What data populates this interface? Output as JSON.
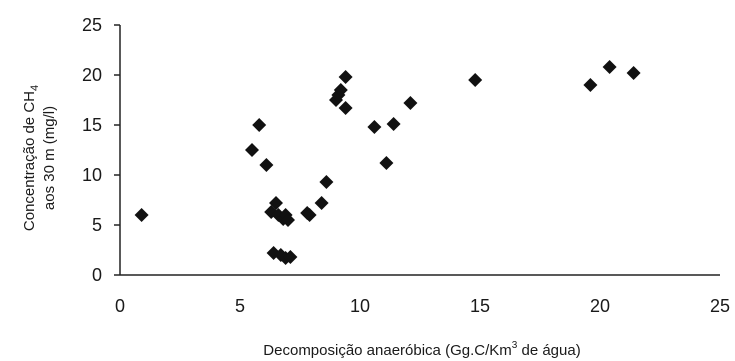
{
  "chart_data": {
    "type": "scatter",
    "xlabel_parts": [
      "Decomposição anaeróbica (Gg.C/Km",
      "3",
      " de água)"
    ],
    "ylabel_line1_parts": [
      "Concentração de CH",
      "4"
    ],
    "ylabel_line2": "aos 30 m (mg/l)",
    "xlim": [
      0,
      25
    ],
    "ylim": [
      0,
      25
    ],
    "xticks": [
      0,
      5,
      10,
      15,
      20,
      25
    ],
    "yticks": [
      0,
      5,
      10,
      15,
      20,
      25
    ],
    "marker": "diamond",
    "marker_color": "#111111",
    "grid": false,
    "points": [
      {
        "x": 0.9,
        "y": 6.0
      },
      {
        "x": 5.5,
        "y": 12.5
      },
      {
        "x": 5.8,
        "y": 15.0
      },
      {
        "x": 6.1,
        "y": 11.0
      },
      {
        "x": 6.3,
        "y": 6.3
      },
      {
        "x": 6.5,
        "y": 7.2
      },
      {
        "x": 6.6,
        "y": 6.0
      },
      {
        "x": 6.8,
        "y": 5.6
      },
      {
        "x": 6.9,
        "y": 6.0
      },
      {
        "x": 7.0,
        "y": 5.5
      },
      {
        "x": 6.4,
        "y": 2.2
      },
      {
        "x": 6.7,
        "y": 2.0
      },
      {
        "x": 6.9,
        "y": 1.7
      },
      {
        "x": 7.1,
        "y": 1.8
      },
      {
        "x": 7.8,
        "y": 6.2
      },
      {
        "x": 7.9,
        "y": 6.0
      },
      {
        "x": 8.4,
        "y": 7.2
      },
      {
        "x": 8.6,
        "y": 9.3
      },
      {
        "x": 9.0,
        "y": 17.5
      },
      {
        "x": 9.1,
        "y": 18.0
      },
      {
        "x": 9.2,
        "y": 18.5
      },
      {
        "x": 9.4,
        "y": 19.8
      },
      {
        "x": 9.4,
        "y": 16.7
      },
      {
        "x": 10.6,
        "y": 14.8
      },
      {
        "x": 11.1,
        "y": 11.2
      },
      {
        "x": 11.4,
        "y": 15.1
      },
      {
        "x": 12.1,
        "y": 17.2
      },
      {
        "x": 14.8,
        "y": 19.5
      },
      {
        "x": 19.6,
        "y": 19.0
      },
      {
        "x": 20.4,
        "y": 20.8
      },
      {
        "x": 21.4,
        "y": 20.2
      }
    ]
  }
}
